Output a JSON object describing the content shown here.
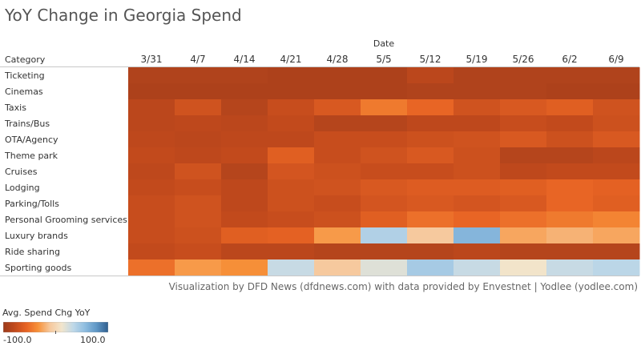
{
  "title": "YoY Change in Georgia Spend",
  "credit": "Visualization by DFD News (dfdnews.com) with data provided by Envestnet | Yodlee (yodlee.com)",
  "legend": {
    "title": "Avg. Spend Chg YoY",
    "min_label": "-100.0",
    "max_label": "100.0"
  },
  "colors": {
    "scale": [
      "#9b3a1b",
      "#c24a1c",
      "#e86424",
      "#f7923a",
      "#f6c89c",
      "#f2e5cc",
      "#bfd8e8",
      "#8fbde0",
      "#5f97c6",
      "#2f5f8f"
    ]
  },
  "chart_data": {
    "type": "heatmap",
    "title": "YoY Change in Georgia Spend",
    "xlabel": "Date",
    "ylabel": "Category",
    "value_range": [
      -100,
      100
    ],
    "x": [
      "3/31",
      "4/7",
      "4/14",
      "4/21",
      "4/28",
      "5/5",
      "5/12",
      "5/19",
      "5/26",
      "6/2",
      "6/9"
    ],
    "y": [
      "Ticketing",
      "Cinemas",
      "Taxis",
      "Trains/Bus",
      "OTA/Agency",
      "Theme park",
      "Cruises",
      "Lodging",
      "Parking/Tolls",
      "Personal Grooming services",
      "Luxury brands",
      "Ride sharing",
      "Sporting goods"
    ],
    "values": [
      [
        -88,
        -88,
        -88,
        -90,
        -90,
        -90,
        -82,
        -88,
        -88,
        -88,
        -88
      ],
      [
        -90,
        -90,
        -90,
        -90,
        -90,
        -90,
        -88,
        -88,
        -88,
        -90,
        -90
      ],
      [
        -82,
        -70,
        -85,
        -75,
        -65,
        -45,
        -55,
        -70,
        -65,
        -60,
        -70
      ],
      [
        -82,
        -80,
        -82,
        -78,
        -85,
        -85,
        -80,
        -80,
        -75,
        -78,
        -72
      ],
      [
        -80,
        -82,
        -80,
        -80,
        -75,
        -75,
        -72,
        -70,
        -65,
        -72,
        -65
      ],
      [
        -78,
        -80,
        -78,
        -60,
        -75,
        -70,
        -65,
        -72,
        -85,
        -85,
        -82
      ],
      [
        -80,
        -70,
        -85,
        -68,
        -72,
        -75,
        -75,
        -72,
        -80,
        -78,
        -78
      ],
      [
        -78,
        -75,
        -80,
        -72,
        -70,
        -65,
        -62,
        -62,
        -60,
        -55,
        -58
      ],
      [
        -75,
        -70,
        -80,
        -72,
        -75,
        -68,
        -65,
        -68,
        -65,
        -55,
        -60
      ],
      [
        -75,
        -70,
        -78,
        -75,
        -72,
        -60,
        -50,
        -55,
        -50,
        -45,
        -40
      ],
      [
        -75,
        -72,
        -60,
        -58,
        -30,
        40,
        -10,
        60,
        -25,
        -20,
        -25
      ],
      [
        -78,
        -75,
        -82,
        -82,
        -85,
        -85,
        -85,
        -82,
        -85,
        -85,
        -85
      ],
      [
        -50,
        -30,
        -35,
        30,
        -10,
        20,
        45,
        30,
        10,
        30,
        35
      ]
    ]
  }
}
